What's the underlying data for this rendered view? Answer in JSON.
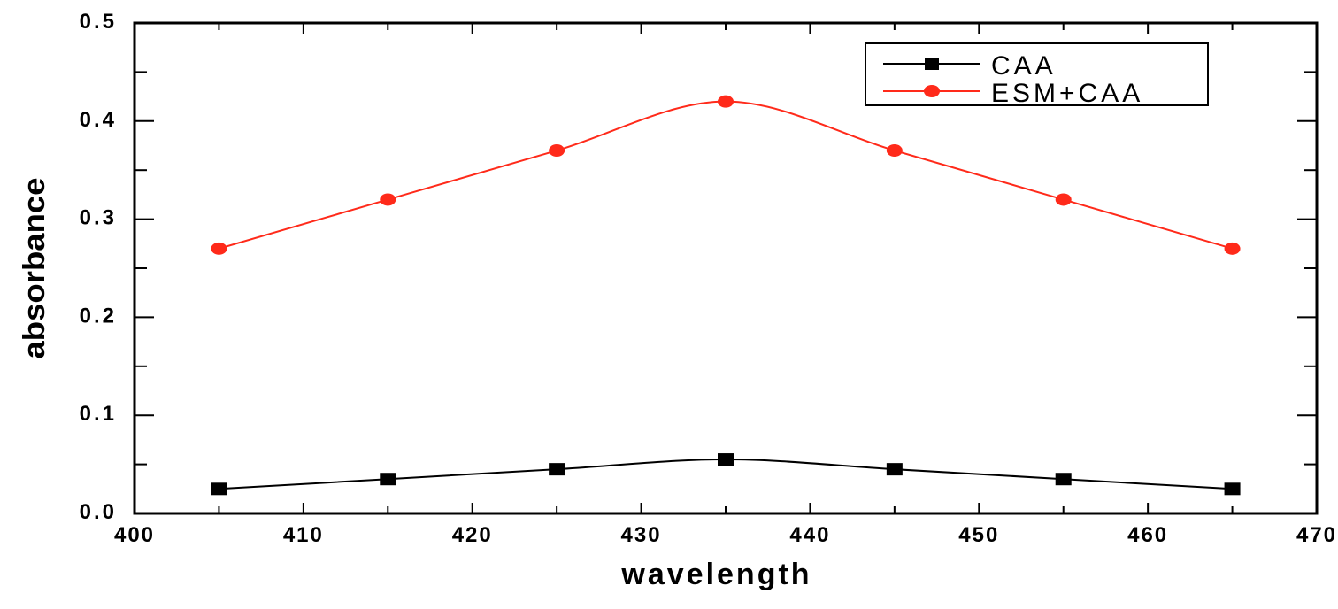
{
  "chart_data": {
    "type": "line",
    "title": "",
    "xlabel": "wavelength",
    "ylabel": "absorbance",
    "xlim": [
      400,
      470
    ],
    "ylim": [
      0.0,
      0.5
    ],
    "xticks": [
      "400",
      "410",
      "420",
      "430",
      "440",
      "450",
      "460",
      "470"
    ],
    "yticks": [
      "0.0",
      "0.1",
      "0.2",
      "0.3",
      "0.4",
      "0.5"
    ],
    "grid": false,
    "legend_position": "top-right",
    "x": [
      405,
      415,
      425,
      435,
      445,
      455,
      465
    ],
    "series": [
      {
        "name": "CAA",
        "color": "#000000",
        "marker": "square",
        "values": [
          0.025,
          0.035,
          0.045,
          0.055,
          0.045,
          0.035,
          0.025
        ]
      },
      {
        "name": "ESM+CAA",
        "color": "#ff2a1a",
        "marker": "circle",
        "values": [
          0.27,
          0.32,
          0.37,
          0.42,
          0.37,
          0.32,
          0.27
        ]
      }
    ]
  }
}
